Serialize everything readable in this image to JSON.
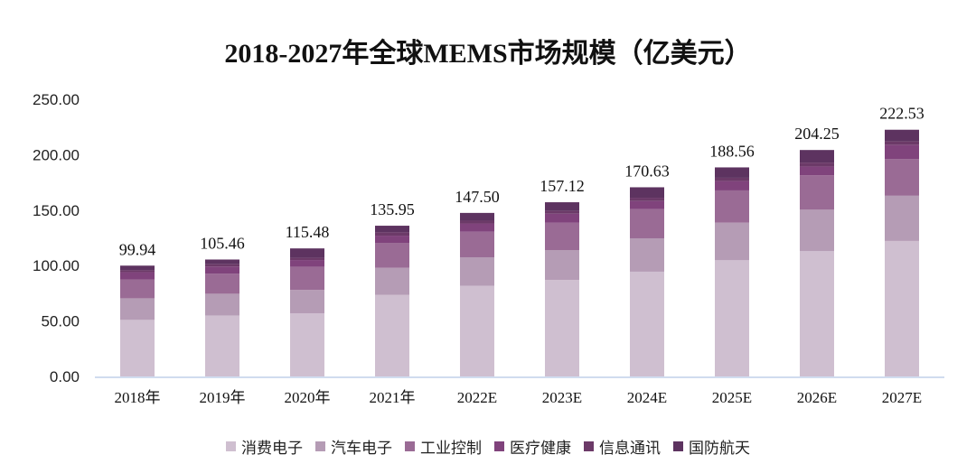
{
  "chart_data": {
    "type": "bar",
    "stacked": true,
    "title": "2018-2027年全球MEMS市场规模（亿美元）",
    "categories": [
      "2018年",
      "2019年",
      "2020年",
      "2021年",
      "2022E",
      "2023E",
      "2024E",
      "2025E",
      "2026E",
      "2027E"
    ],
    "totals": [
      "99.94",
      "105.46",
      "115.48",
      "135.95",
      "147.50",
      "157.12",
      "170.63",
      "188.56",
      "204.25",
      "222.53"
    ],
    "ylim": [
      0,
      250
    ],
    "yticks": [
      "0.00",
      "50.00",
      "100.00",
      "150.00",
      "200.00",
      "250.00"
    ],
    "grid": false,
    "legend_position": "bottom",
    "series": [
      {
        "name": "消费电子",
        "color": "#cfbfd0",
        "values": [
          51.0,
          55.0,
          57.0,
          73.5,
          81.7,
          87.0,
          94.5,
          104.8,
          113.0,
          122.2
        ]
      },
      {
        "name": "汽车电子",
        "color": "#b59cb5",
        "values": [
          19.5,
          19.6,
          21.0,
          24.5,
          25.8,
          27.0,
          30.1,
          33.9,
          37.4,
          40.8
        ]
      },
      {
        "name": "工业控制",
        "color": "#9a6b95",
        "values": [
          17.0,
          18.0,
          21.0,
          22.5,
          23.0,
          24.6,
          26.3,
          29.1,
          31.1,
          33.0
        ]
      },
      {
        "name": "医疗健康",
        "color": "#80437c",
        "values": [
          6.5,
          6.5,
          6.0,
          6.5,
          7.5,
          8.2,
          7.3,
          8.4,
          7.9,
          13.0
        ]
      },
      {
        "name": "信息通讯",
        "color": "#6c3a68",
        "values": [
          2.0,
          2.1,
          2.0,
          3.0,
          2.5,
          2.5,
          3.0,
          3.0,
          3.5,
          3.0
        ]
      },
      {
        "name": "国防航天",
        "color": "#5d3360",
        "values": [
          3.94,
          4.26,
          8.48,
          5.95,
          7.0,
          7.82,
          9.43,
          9.36,
          11.35,
          10.53
        ]
      }
    ]
  }
}
